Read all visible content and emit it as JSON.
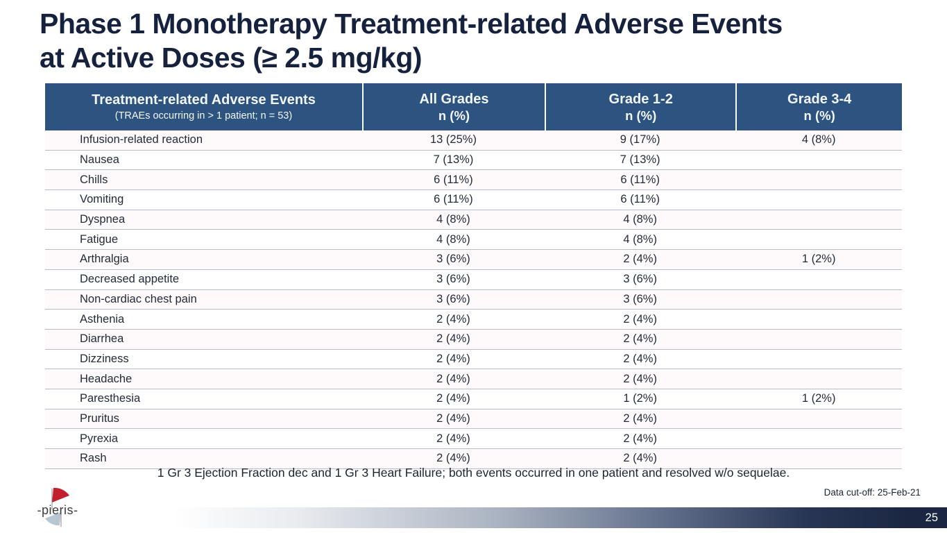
{
  "slide": {
    "title_line1": "Phase 1 Monotherapy Treatment-related Adverse Events",
    "title_line2": "at Active Doses (≥ 2.5 mg/kg)",
    "footnote": "1 Gr 3 Ejection Fraction dec and 1 Gr 3 Heart Failure; both events occurred in one patient and resolved w/o sequelae.",
    "data_cutoff": "Data cut-off: 25-Feb-21",
    "page_number": "25",
    "logo_text": "-pieris-"
  },
  "colors": {
    "header_bg": "#2d5480",
    "title_text": "#16213d",
    "footer_navy": "#1b2742",
    "row_separator": "#b6bdc9",
    "logo_red": "#c1202c",
    "logo_blue": "#b7c7d1"
  },
  "table": {
    "columns": [
      {
        "title": "Treatment-related Adverse Events",
        "subtitle": "(TRAEs occurring in > 1 patient; n = 53)"
      },
      {
        "title": "All Grades",
        "subtitle": "n (%)"
      },
      {
        "title": "Grade 1-2",
        "subtitle": "n (%)"
      },
      {
        "title": "Grade 3-4",
        "subtitle": "n (%)"
      }
    ],
    "rows": [
      {
        "event": "Infusion-related reaction",
        "all_grades": "13 (25%)",
        "grade_1_2": "9 (17%)",
        "grade_3_4": "4 (8%)"
      },
      {
        "event": "Nausea",
        "all_grades": "7 (13%)",
        "grade_1_2": "7 (13%)",
        "grade_3_4": ""
      },
      {
        "event": "Chills",
        "all_grades": "6 (11%)",
        "grade_1_2": "6 (11%)",
        "grade_3_4": ""
      },
      {
        "event": "Vomiting",
        "all_grades": "6 (11%)",
        "grade_1_2": "6 (11%)",
        "grade_3_4": ""
      },
      {
        "event": "Dyspnea",
        "all_grades": "4 (8%)",
        "grade_1_2": "4 (8%)",
        "grade_3_4": ""
      },
      {
        "event": "Fatigue",
        "all_grades": "4 (8%)",
        "grade_1_2": "4 (8%)",
        "grade_3_4": ""
      },
      {
        "event": "Arthralgia",
        "all_grades": "3 (6%)",
        "grade_1_2": "2 (4%)",
        "grade_3_4": "1 (2%)"
      },
      {
        "event": "Decreased appetite",
        "all_grades": "3 (6%)",
        "grade_1_2": "3 (6%)",
        "grade_3_4": ""
      },
      {
        "event": "Non-cardiac chest pain",
        "all_grades": "3 (6%)",
        "grade_1_2": "3 (6%)",
        "grade_3_4": ""
      },
      {
        "event": "Asthenia",
        "all_grades": "2 (4%)",
        "grade_1_2": "2 (4%)",
        "grade_3_4": ""
      },
      {
        "event": "Diarrhea",
        "all_grades": "2 (4%)",
        "grade_1_2": "2 (4%)",
        "grade_3_4": ""
      },
      {
        "event": "Dizziness",
        "all_grades": "2 (4%)",
        "grade_1_2": "2 (4%)",
        "grade_3_4": ""
      },
      {
        "event": "Headache",
        "all_grades": "2 (4%)",
        "grade_1_2": "2 (4%)",
        "grade_3_4": ""
      },
      {
        "event": "Paresthesia",
        "all_grades": "2 (4%)",
        "grade_1_2": "1 (2%)",
        "grade_3_4": "1 (2%)"
      },
      {
        "event": "Pruritus",
        "all_grades": "2 (4%)",
        "grade_1_2": "2 (4%)",
        "grade_3_4": ""
      },
      {
        "event": "Pyrexia",
        "all_grades": "2 (4%)",
        "grade_1_2": "2 (4%)",
        "grade_3_4": ""
      },
      {
        "event": "Rash",
        "all_grades": "2 (4%)",
        "grade_1_2": "2 (4%)",
        "grade_3_4": ""
      }
    ]
  }
}
